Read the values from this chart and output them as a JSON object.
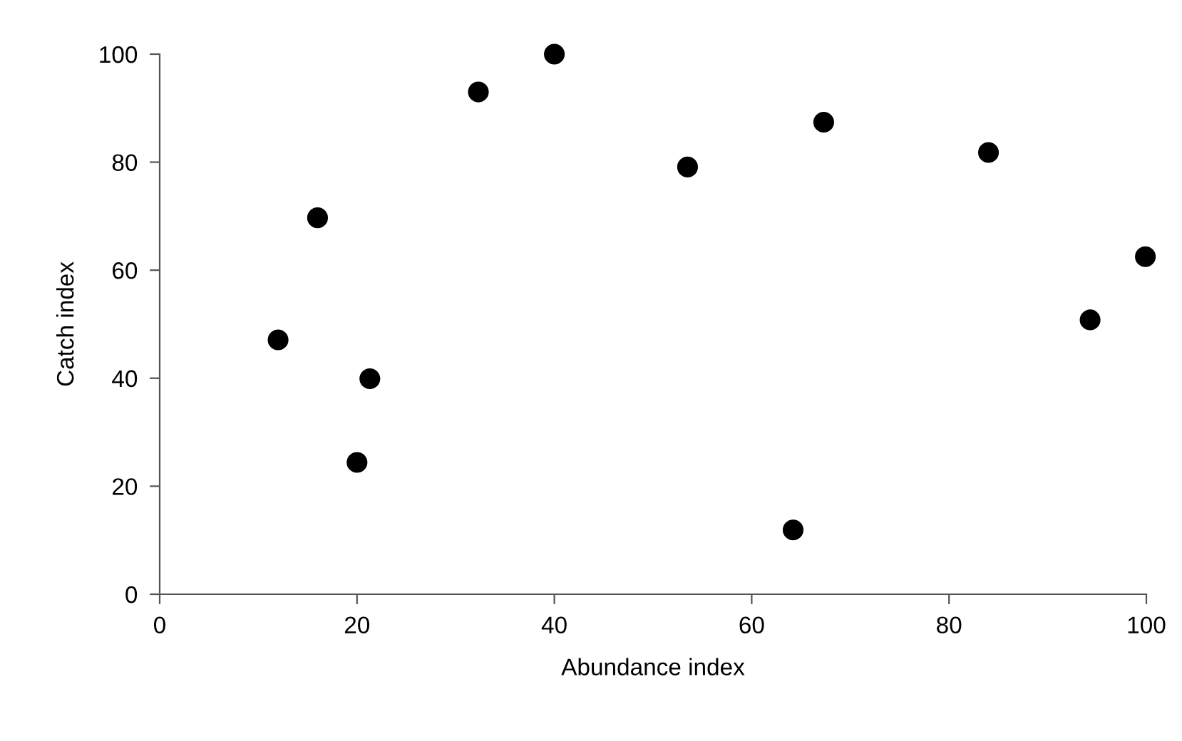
{
  "chart_data": {
    "type": "scatter",
    "xlabel": "Abundance index",
    "ylabel": "Catch index",
    "x": [
      12,
      16,
      20,
      21.3,
      32.3,
      40,
      53.5,
      67.3,
      84,
      99.9,
      94.3,
      64.2
    ],
    "series": [
      {
        "color": "#000000",
        "values": [
          47.1,
          69.7,
          24.4,
          39.9,
          93,
          100,
          79.1,
          87.4,
          81.8,
          62.5,
          50.8,
          11.9
        ]
      }
    ],
    "xlim": [
      0,
      100
    ],
    "ylim": [
      0,
      100
    ],
    "xticks": [
      0,
      20,
      40,
      60,
      80,
      100
    ],
    "yticks": [
      0,
      20,
      40,
      60,
      80,
      100
    ],
    "marker": "circle",
    "grid": false,
    "legend": false
  }
}
